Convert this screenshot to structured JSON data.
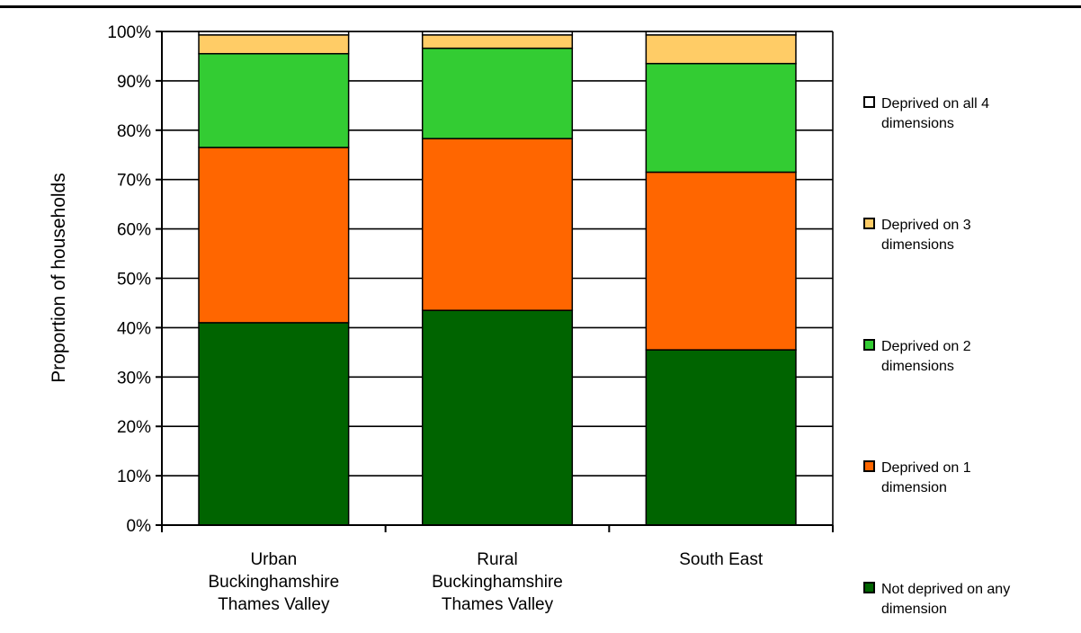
{
  "chart_data": {
    "type": "bar",
    "stacked": true,
    "percent_stacked": true,
    "categories": [
      [
        "Urban",
        "Buckinghamshire",
        "Thames Valley"
      ],
      [
        "Rural",
        "Buckinghamshire",
        "Thames Valley"
      ],
      [
        "South East"
      ]
    ],
    "series": [
      {
        "name": "Not deprived on any dimension",
        "legend_lines": [
          "Not deprived on any",
          "dimension"
        ],
        "color": "#006400",
        "values": [
          41.0,
          43.5,
          35.5
        ]
      },
      {
        "name": "Deprived on 1 dimension",
        "legend_lines": [
          "Deprived on 1",
          "dimension"
        ],
        "color": "#FF6600",
        "values": [
          35.5,
          34.8,
          36.0
        ]
      },
      {
        "name": "Deprived on 2 dimensions",
        "legend_lines": [
          "Deprived on 2",
          "dimensions"
        ],
        "color": "#33CC33",
        "values": [
          19.0,
          18.3,
          22.0
        ]
      },
      {
        "name": "Deprived on 3 dimensions",
        "legend_lines": [
          "Deprived on 3",
          "dimensions"
        ],
        "color": "#FFCC66",
        "values": [
          3.8,
          2.7,
          5.8
        ]
      },
      {
        "name": "Deprived on all 4 dimensions",
        "legend_lines": [
          "Deprived on all 4",
          "dimensions"
        ],
        "color": "#FFFFFF",
        "values": [
          0.7,
          0.7,
          0.7
        ]
      }
    ],
    "ylabel": "Proportion of households",
    "ylim": [
      0,
      100
    ],
    "yticks": [
      "0%",
      "10%",
      "20%",
      "30%",
      "40%",
      "50%",
      "60%",
      "70%",
      "80%",
      "90%",
      "100%"
    ],
    "grid": true,
    "legend_position": "right"
  }
}
